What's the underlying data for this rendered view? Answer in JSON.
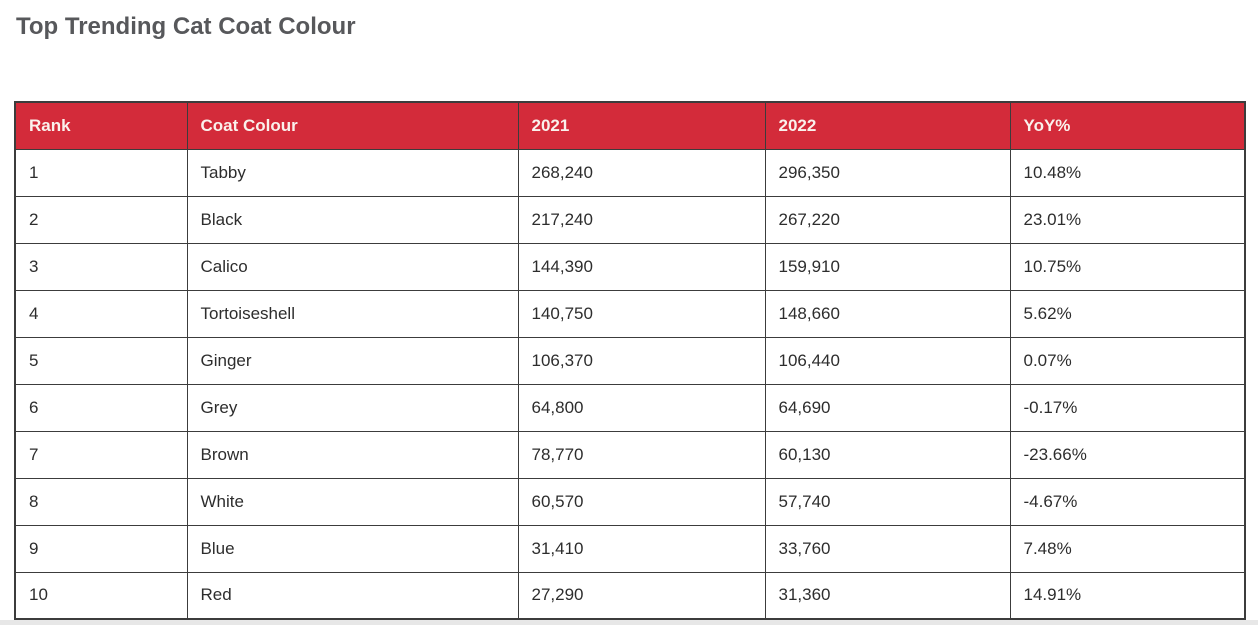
{
  "page": {
    "title": "Top Trending Cat Coat Colour"
  },
  "colors": {
    "header_bg": "#d32b3a",
    "header_text": "#faf1ec",
    "border": "#3c3c3c",
    "title_text": "#57585b",
    "body_text": "#2d2d2d",
    "bottom_strip": "#e7e7e7"
  },
  "table": {
    "columns": [
      "Rank",
      "Coat Colour",
      "2021",
      "2022",
      "YoY%"
    ],
    "rows": [
      [
        "1",
        "Tabby",
        "268,240",
        "296,350",
        "10.48%"
      ],
      [
        "2",
        "Black",
        "217,240",
        "267,220",
        "23.01%"
      ],
      [
        "3",
        "Calico",
        "144,390",
        "159,910",
        "10.75%"
      ],
      [
        "4",
        "Tortoiseshell",
        "140,750",
        "148,660",
        "5.62%"
      ],
      [
        "5",
        "Ginger",
        "106,370",
        "106,440",
        "0.07%"
      ],
      [
        "6",
        "Grey",
        "64,800",
        "64,690",
        "-0.17%"
      ],
      [
        "7",
        "Brown",
        "78,770",
        "60,130",
        "-23.66%"
      ],
      [
        "8",
        "White",
        "60,570",
        "57,740",
        "-4.67%"
      ],
      [
        "9",
        "Blue",
        "31,410",
        "33,760",
        "7.48%"
      ],
      [
        "10",
        "Red",
        "27,290",
        "31,360",
        "14.91%"
      ]
    ]
  },
  "chart_data": {
    "type": "table",
    "title": "Top Trending Cat Coat Colour",
    "columns": [
      "Rank",
      "Coat Colour",
      "2021",
      "2022",
      "YoY%"
    ],
    "rows": [
      {
        "rank": 1,
        "coat_colour": "Tabby",
        "y2021": 268240,
        "y2022": 296350,
        "yoy_pct": 10.48
      },
      {
        "rank": 2,
        "coat_colour": "Black",
        "y2021": 217240,
        "y2022": 267220,
        "yoy_pct": 23.01
      },
      {
        "rank": 3,
        "coat_colour": "Calico",
        "y2021": 144390,
        "y2022": 159910,
        "yoy_pct": 10.75
      },
      {
        "rank": 4,
        "coat_colour": "Tortoiseshell",
        "y2021": 140750,
        "y2022": 148660,
        "yoy_pct": 5.62
      },
      {
        "rank": 5,
        "coat_colour": "Ginger",
        "y2021": 106370,
        "y2022": 106440,
        "yoy_pct": 0.07
      },
      {
        "rank": 6,
        "coat_colour": "Grey",
        "y2021": 64800,
        "y2022": 64690,
        "yoy_pct": -0.17
      },
      {
        "rank": 7,
        "coat_colour": "Brown",
        "y2021": 78770,
        "y2022": 60130,
        "yoy_pct": -23.66
      },
      {
        "rank": 8,
        "coat_colour": "White",
        "y2021": 60570,
        "y2022": 57740,
        "yoy_pct": -4.67
      },
      {
        "rank": 9,
        "coat_colour": "Blue",
        "y2021": 31410,
        "y2022": 33760,
        "yoy_pct": 7.48
      },
      {
        "rank": 10,
        "coat_colour": "Red",
        "y2021": 27290,
        "y2022": 31360,
        "yoy_pct": 14.91
      }
    ]
  }
}
